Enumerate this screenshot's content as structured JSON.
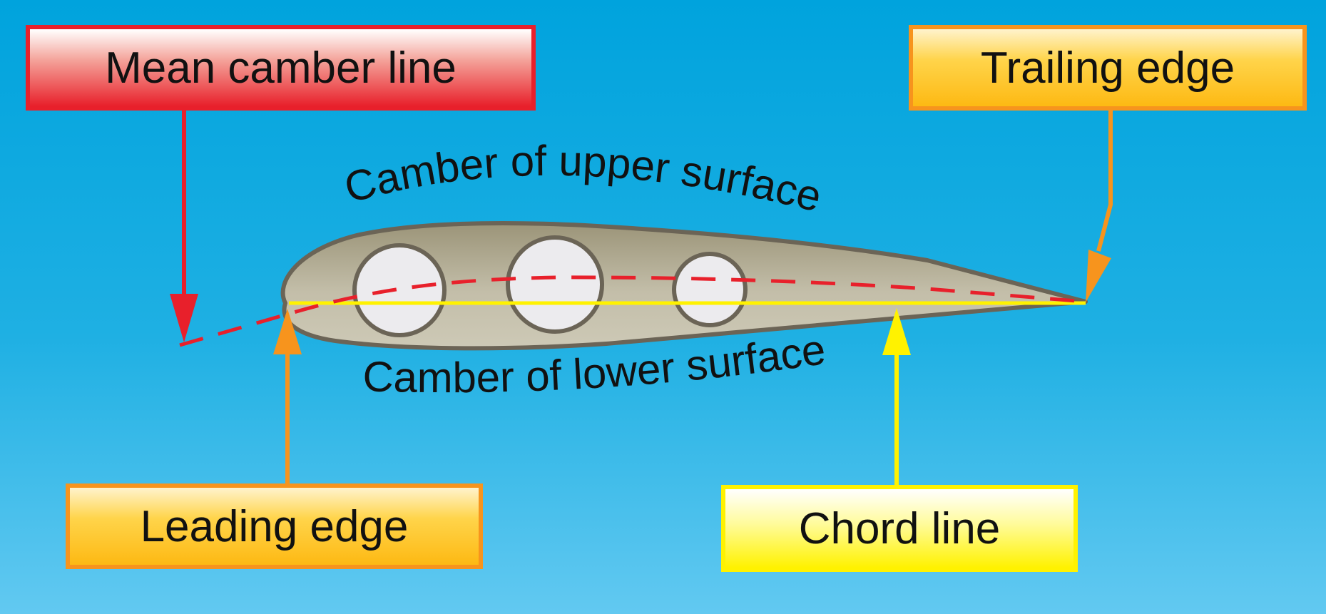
{
  "labels": {
    "mean_camber_line": "Mean camber line",
    "trailing_edge": "Trailing edge",
    "leading_edge": "Leading edge",
    "chord_line": "Chord line",
    "upper_camber": "Camber of upper surface",
    "lower_camber": "Camber of lower surface"
  },
  "colors": {
    "background_top": "#00a3dd",
    "background_bottom": "#62c9f1",
    "mean_camber_line": "#e8202b",
    "chord_line": "#fff200",
    "edge_pointer": "#f7941d",
    "airfoil_fill": "#b7b09c",
    "airfoil_outline": "#6b6456",
    "lightening_hole": "#ecebee"
  }
}
